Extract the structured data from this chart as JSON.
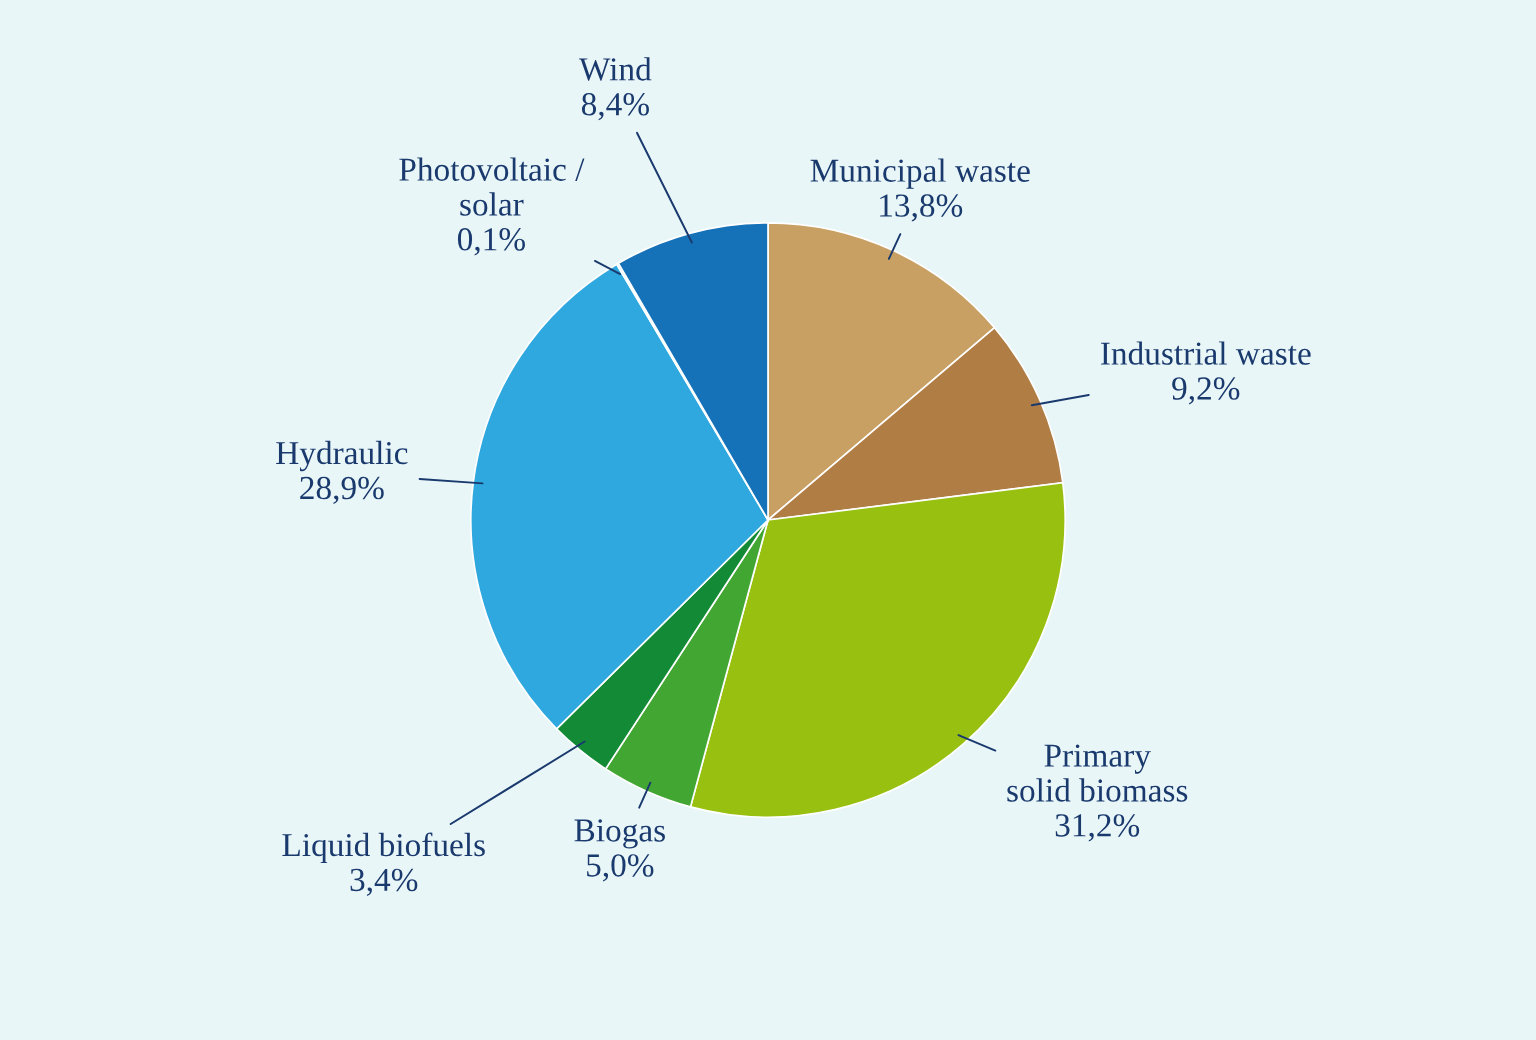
{
  "chart_data": {
    "type": "pie",
    "categories": [
      "Municipal waste",
      "Industrial waste",
      "Primary\nsolid biomass",
      "Biogas",
      "Liquid biofuels",
      "Hydraulic",
      "Photovoltaic /\nsolar",
      "Wind"
    ],
    "values": [
      13.8,
      9.2,
      31.2,
      5.0,
      3.4,
      28.9,
      0.1,
      8.4
    ],
    "colors": [
      "#c9a064",
      "#b07d45",
      "#97c010",
      "#42a633",
      "#138a36",
      "#2ea8df",
      "#1f8fd0",
      "#1672b8"
    ],
    "value_labels": [
      "13,8%",
      "9,2%",
      "31,2%",
      "5,0%",
      "3,4%",
      "28,9%",
      "0,1%",
      "8,4%"
    ],
    "legend": false
  }
}
